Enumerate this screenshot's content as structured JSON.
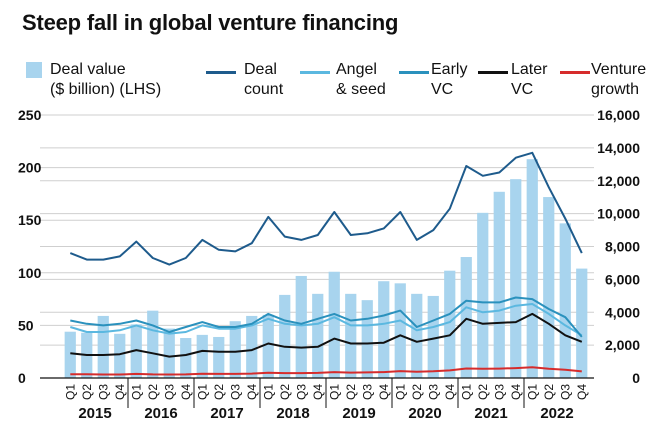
{
  "chart_data": {
    "type": "bar+line",
    "title": "Steep fall in global venture financing",
    "categories": [
      "2015 Q1",
      "2015 Q2",
      "2015 Q3",
      "2015 Q4",
      "2016 Q1",
      "2016 Q2",
      "2016 Q3",
      "2016 Q4",
      "2017 Q1",
      "2017 Q2",
      "2017 Q3",
      "2017 Q4",
      "2018 Q1",
      "2018 Q2",
      "2018 Q3",
      "2018 Q4",
      "2019 Q1",
      "2019 Q2",
      "2019 Q3",
      "2019 Q4",
      "2020 Q1",
      "2020 Q2",
      "2020 Q3",
      "2020 Q4",
      "2021 Q1",
      "2021 Q2",
      "2021 Q3",
      "2021 Q4",
      "2022 Q1",
      "2022 Q2",
      "2022 Q3",
      "2022 Q4"
    ],
    "quarter_labels": [
      "Q1",
      "Q2",
      "Q3",
      "Q4",
      "Q1",
      "Q2",
      "Q3",
      "Q4",
      "Q1",
      "Q2",
      "Q3",
      "Q4",
      "Q1",
      "Q2",
      "Q3",
      "Q4",
      "Q1",
      "Q2",
      "Q3",
      "Q4",
      "Q1",
      "Q2",
      "Q3",
      "Q4",
      "Q1",
      "Q2",
      "Q3",
      "Q4",
      "Q1",
      "Q2",
      "Q3",
      "Q4"
    ],
    "years": [
      "2015",
      "2016",
      "2017",
      "2018",
      "2019",
      "2020",
      "2021",
      "2022"
    ],
    "ylim_left": [
      0,
      250
    ],
    "yticks_left": [
      "0",
      "50",
      "100",
      "150",
      "200",
      "250"
    ],
    "ylim_right": [
      0,
      16000
    ],
    "yticks_right": [
      "0",
      "2,000",
      "4,000",
      "6,000",
      "8,000",
      "10,000",
      "12,000",
      "14,000",
      "16,000"
    ],
    "grid": "horizontal",
    "legend_position": "top",
    "bar_series": {
      "name": "Deal value ($ billion) (LHS)",
      "axis": "left",
      "color": "#a8d4ee",
      "values": [
        44,
        43,
        59,
        42,
        51,
        64,
        47,
        38,
        41,
        39,
        54,
        59,
        60,
        79,
        97,
        80,
        101,
        80,
        74,
        92,
        90,
        80,
        78,
        102,
        115,
        157,
        177,
        189,
        208,
        172,
        147,
        104
      ]
    },
    "line_series": [
      {
        "name": "Deal count",
        "axis": "right",
        "color": "#1e5b8c",
        "values": [
          7600,
          7200,
          7200,
          7400,
          8300,
          7300,
          6900,
          7300,
          8400,
          7800,
          7700,
          8200,
          9800,
          8600,
          8400,
          8700,
          10100,
          8700,
          8800,
          9100,
          10100,
          8400,
          9000,
          10300,
          12900,
          12300,
          12500,
          13400,
          13700,
          11600,
          9700,
          7600
        ]
      },
      {
        "name": "Angel & seed",
        "axis": "right",
        "color": "#5bb8e0",
        "values": [
          3100,
          2800,
          2800,
          2900,
          3200,
          2900,
          2700,
          2800,
          3200,
          3000,
          3000,
          3200,
          3600,
          3300,
          3200,
          3300,
          3700,
          3200,
          3200,
          3300,
          3500,
          2900,
          3100,
          3400,
          4300,
          4000,
          4100,
          4400,
          4500,
          3900,
          3200,
          2600
        ]
      },
      {
        "name": "Early VC",
        "axis": "right",
        "color": "#2a91bd",
        "values": [
          3500,
          3300,
          3200,
          3300,
          3500,
          3200,
          2800,
          3100,
          3400,
          3100,
          3100,
          3300,
          3900,
          3500,
          3300,
          3600,
          3900,
          3500,
          3600,
          3800,
          4100,
          3100,
          3500,
          3900,
          4700,
          4600,
          4600,
          4900,
          4800,
          4200,
          3700,
          2500
        ]
      },
      {
        "name": "Later VC",
        "axis": "right",
        "color": "#111111",
        "values": [
          1500,
          1400,
          1400,
          1450,
          1700,
          1500,
          1300,
          1400,
          1650,
          1600,
          1600,
          1700,
          2100,
          1900,
          1850,
          1900,
          2400,
          2100,
          2100,
          2150,
          2600,
          2200,
          2400,
          2600,
          3600,
          3300,
          3350,
          3400,
          3900,
          3300,
          2600,
          2200
        ]
      },
      {
        "name": "Venture growth",
        "axis": "right",
        "color": "#d62c2c",
        "values": [
          230,
          230,
          210,
          210,
          250,
          220,
          210,
          220,
          260,
          250,
          250,
          270,
          320,
          300,
          300,
          310,
          360,
          330,
          340,
          360,
          420,
          380,
          410,
          460,
          580,
          560,
          570,
          600,
          650,
          560,
          500,
          400
        ]
      }
    ]
  },
  "legend": {
    "deal_value": {
      "line1": "Deal value",
      "line2": "($ billion) (LHS)"
    },
    "deal_count": {
      "line1": "Deal",
      "line2": "count"
    },
    "angel_seed": {
      "line1": "Angel",
      "line2": "& seed"
    },
    "early_vc": {
      "line1": "Early",
      "line2": "VC"
    },
    "later_vc": {
      "line1": "Later",
      "line2": "VC"
    },
    "venture_growth": {
      "line1": "Venture",
      "line2": "growth"
    }
  }
}
